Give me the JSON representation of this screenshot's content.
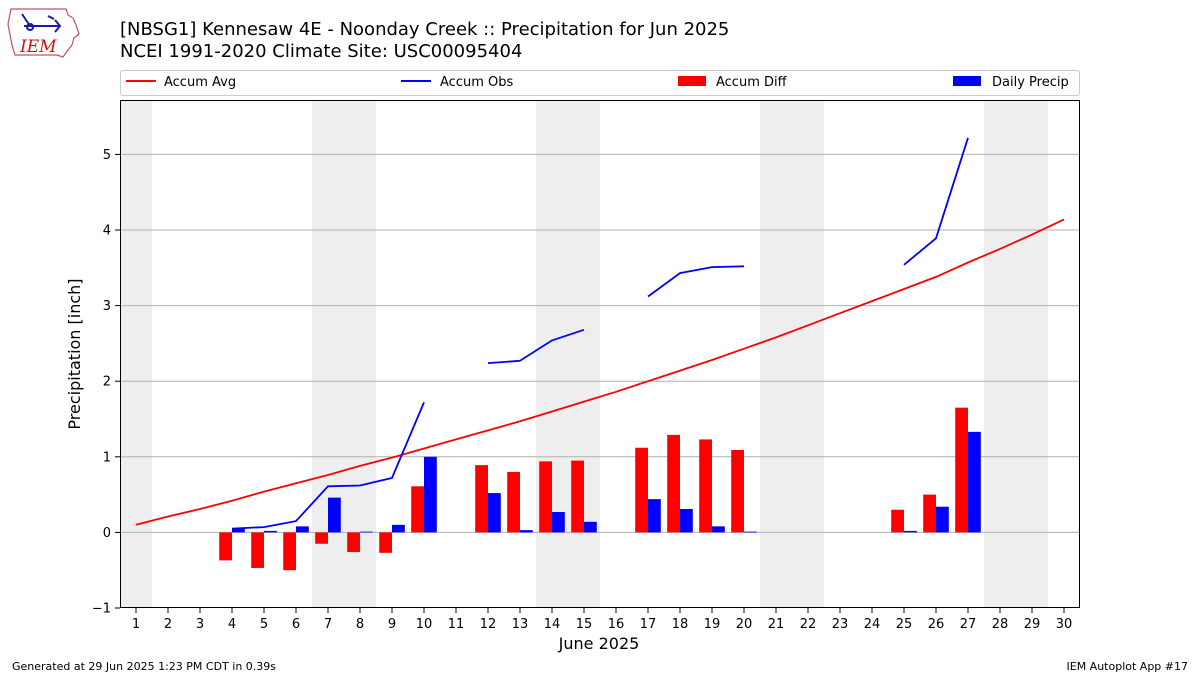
{
  "header": {
    "title_line1": "[NBSG1] Kennesaw 4E - Noonday Creek :: Precipitation for Jun 2025",
    "title_line2": "NCEI 1991-2020 Climate Site: USC00095404"
  },
  "logo": {
    "text": "IEM",
    "icon": "iowa-state-outline-logo"
  },
  "footer": {
    "generated": "Generated at 29 Jun 2025 1:23 PM CDT in 0.39s",
    "app": "IEM Autoplot App #17"
  },
  "chart_data": {
    "type": "bar",
    "xlabel": "June 2025",
    "ylabel": "Precipitation [inch]",
    "ylim": [
      -1,
      5.72
    ],
    "yticks": [
      -1,
      0,
      1,
      2,
      3,
      4,
      5
    ],
    "ytick_labels": [
      "−1",
      "0",
      "1",
      "2",
      "3",
      "4",
      "5"
    ],
    "days": [
      1,
      2,
      3,
      4,
      5,
      6,
      7,
      8,
      9,
      10,
      11,
      12,
      13,
      14,
      15,
      16,
      17,
      18,
      19,
      20,
      21,
      22,
      23,
      24,
      25,
      26,
      27,
      28,
      29,
      30
    ],
    "weekend_spans": [
      [
        1,
        1
      ],
      [
        7,
        8
      ],
      [
        14,
        15
      ],
      [
        21,
        22
      ],
      [
        28,
        29
      ]
    ],
    "grid": "horizontal",
    "legend_position": "top",
    "colors": {
      "accum_avg": "#ff0000",
      "accum_obs": "#0000ff",
      "accum_diff": "#ff0000",
      "daily_precip": "#0000ff",
      "weekend_band": "#eeeeee",
      "grid": "#b0b0b0"
    },
    "legend": [
      "Accum Avg",
      "Accum Obs",
      "Accum Diff",
      "Daily Precip"
    ],
    "series": [
      {
        "name": "Accum Avg",
        "kind": "line",
        "values": [
          0.1,
          0.21,
          0.31,
          0.42,
          0.54,
          0.65,
          0.76,
          0.88,
          0.99,
          1.11,
          1.23,
          1.35,
          1.47,
          1.6,
          1.73,
          1.86,
          2.0,
          2.14,
          2.28,
          2.43,
          2.58,
          2.74,
          2.9,
          3.06,
          3.22,
          3.38,
          3.57,
          3.75,
          3.94,
          4.14
        ]
      },
      {
        "name": "Accum Obs",
        "kind": "line",
        "values": [
          null,
          null,
          null,
          0.05,
          0.07,
          0.15,
          0.61,
          0.62,
          0.72,
          1.72,
          null,
          2.24,
          2.27,
          2.54,
          2.68,
          null,
          3.12,
          3.43,
          3.51,
          3.52,
          null,
          null,
          null,
          null,
          3.54,
          3.89,
          5.22,
          null,
          null,
          null
        ]
      },
      {
        "name": "Accum Diff",
        "kind": "bar",
        "values": [
          null,
          null,
          null,
          -0.37,
          -0.47,
          -0.5,
          -0.15,
          -0.26,
          -0.27,
          0.61,
          null,
          0.89,
          0.8,
          0.94,
          0.95,
          null,
          1.12,
          1.29,
          1.23,
          1.09,
          null,
          null,
          null,
          null,
          0.3,
          0.5,
          1.65,
          null,
          null,
          null
        ]
      },
      {
        "name": "Daily Precip",
        "kind": "bar",
        "values": [
          null,
          null,
          null,
          0.05,
          0.02,
          0.08,
          0.46,
          0.01,
          0.1,
          1.0,
          null,
          0.52,
          0.03,
          0.27,
          0.14,
          null,
          0.44,
          0.31,
          0.08,
          0.01,
          null,
          null,
          null,
          null,
          0.02,
          0.34,
          1.33,
          null,
          null,
          null
        ]
      }
    ]
  }
}
